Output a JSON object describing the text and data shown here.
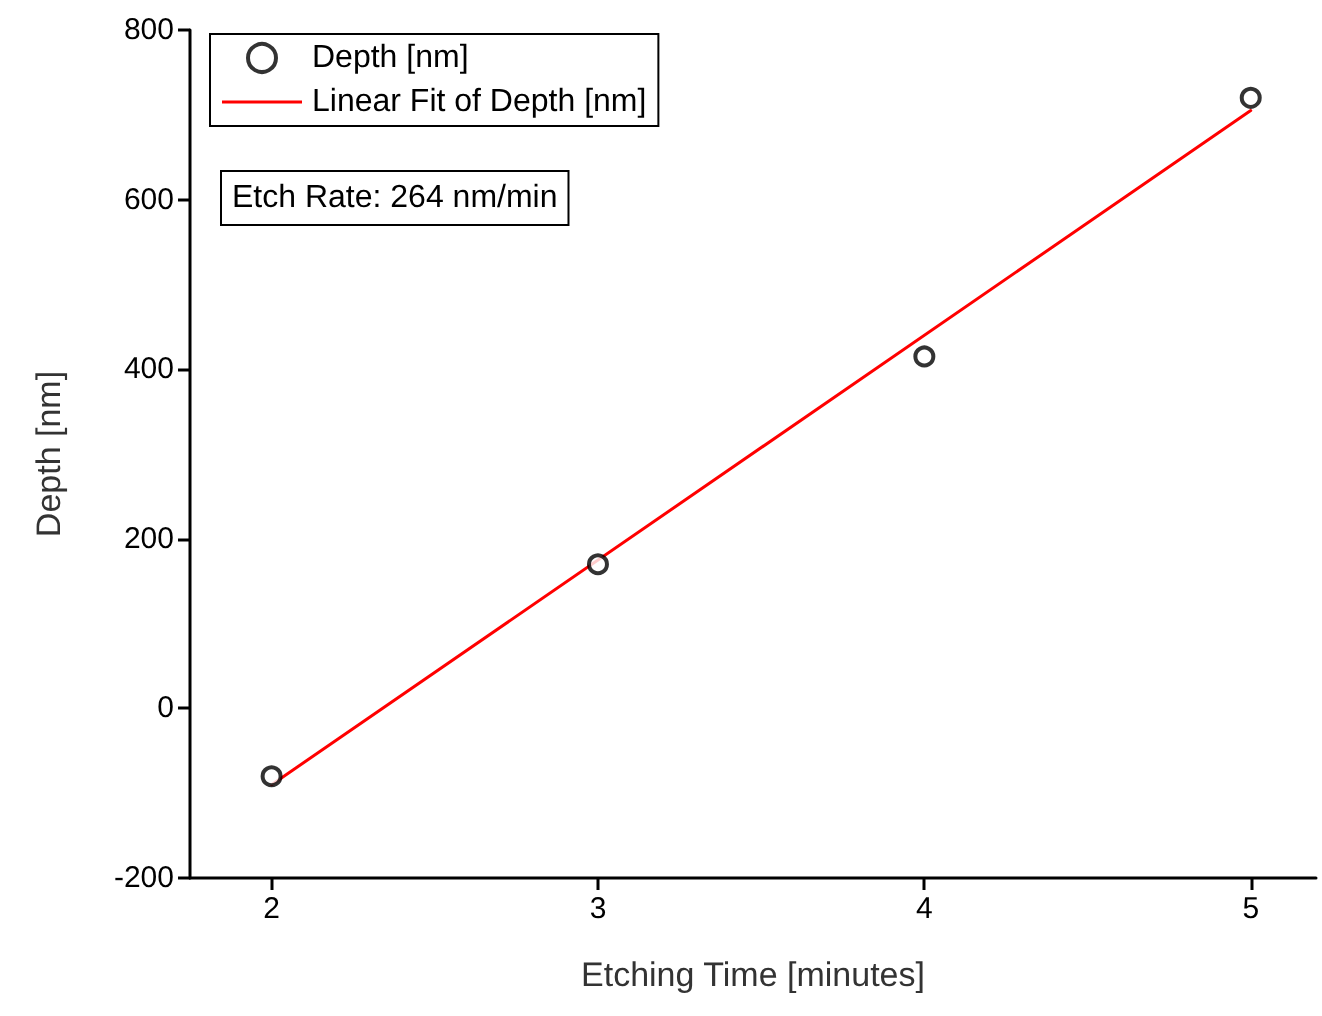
{
  "chart_data": {
    "type": "scatter",
    "xlabel": "Etching Time [minutes]",
    "ylabel": "Depth [nm]",
    "xlim": [
      1.75,
      5.2
    ],
    "xticks": [
      2,
      3,
      4,
      5
    ],
    "ylim": [
      -200,
      800
    ],
    "yticks": [
      -200,
      0,
      200,
      400,
      600,
      800
    ],
    "series": [
      {
        "name": "Depth [nm]",
        "color": "#000000",
        "x": [
          2,
          3,
          4,
          5
        ],
        "values": [
          -80,
          170,
          415,
          720
        ],
        "marker": "circle"
      },
      {
        "name": "Linear Fit of Depth [nm]",
        "type": "line",
        "color": "#ff0000",
        "x": [
          2,
          5
        ],
        "values": [
          -90,
          705
        ],
        "marker": "none",
        "line_style": "solid"
      }
    ],
    "annotations": [
      "Etch Rate: 264 nm/min"
    ],
    "legend": "top left",
    "grid": false
  }
}
